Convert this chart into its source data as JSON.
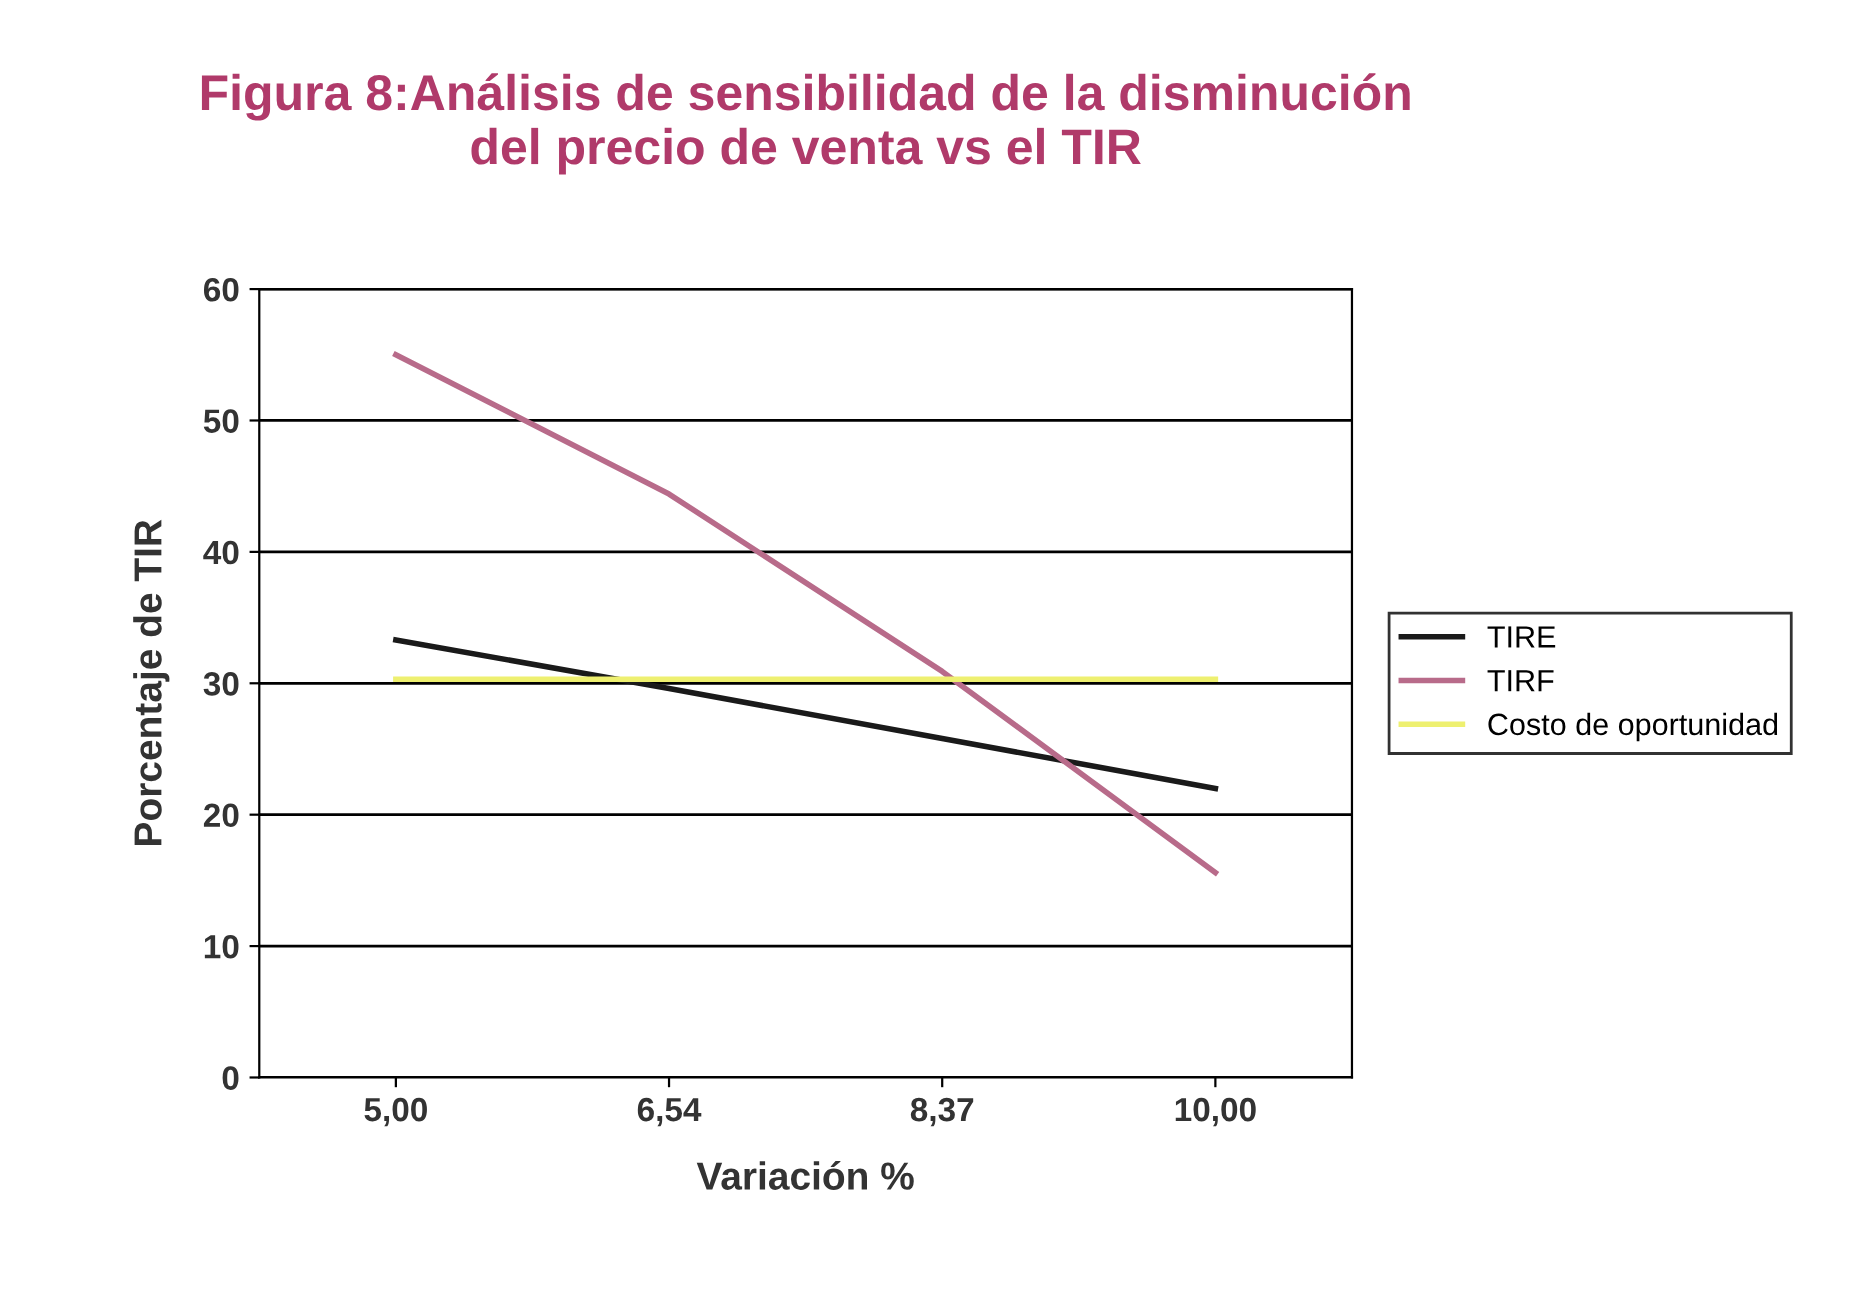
{
  "chart_data": {
    "type": "line",
    "title": "Figura 8:Análisis de sensibilidad de la disminución\ndel precio de venta vs el TIR",
    "xlabel": "Variación %",
    "ylabel": "Porcentaje de TIR",
    "categories": [
      "5,00",
      "6,54",
      "8,37",
      "10,00"
    ],
    "series": [
      {
        "name": "TIRE",
        "color": "#1a1a1a",
        "values": [
          33.3,
          29.6,
          25.8,
          22.0
        ]
      },
      {
        "name": "TIRF",
        "color": "#b86b8a",
        "values": [
          55,
          44.4,
          30.9,
          15.6
        ]
      },
      {
        "name": "Costo de oportunidad",
        "color": "#eef070",
        "values": [
          30.3,
          30.3,
          30.3,
          30.3
        ]
      }
    ],
    "ylim": [
      0,
      60
    ],
    "yticks": [
      0,
      10,
      20,
      30,
      40,
      50,
      60
    ],
    "grid": "y",
    "legend": "right",
    "marker": "none",
    "line_style": "solid"
  }
}
